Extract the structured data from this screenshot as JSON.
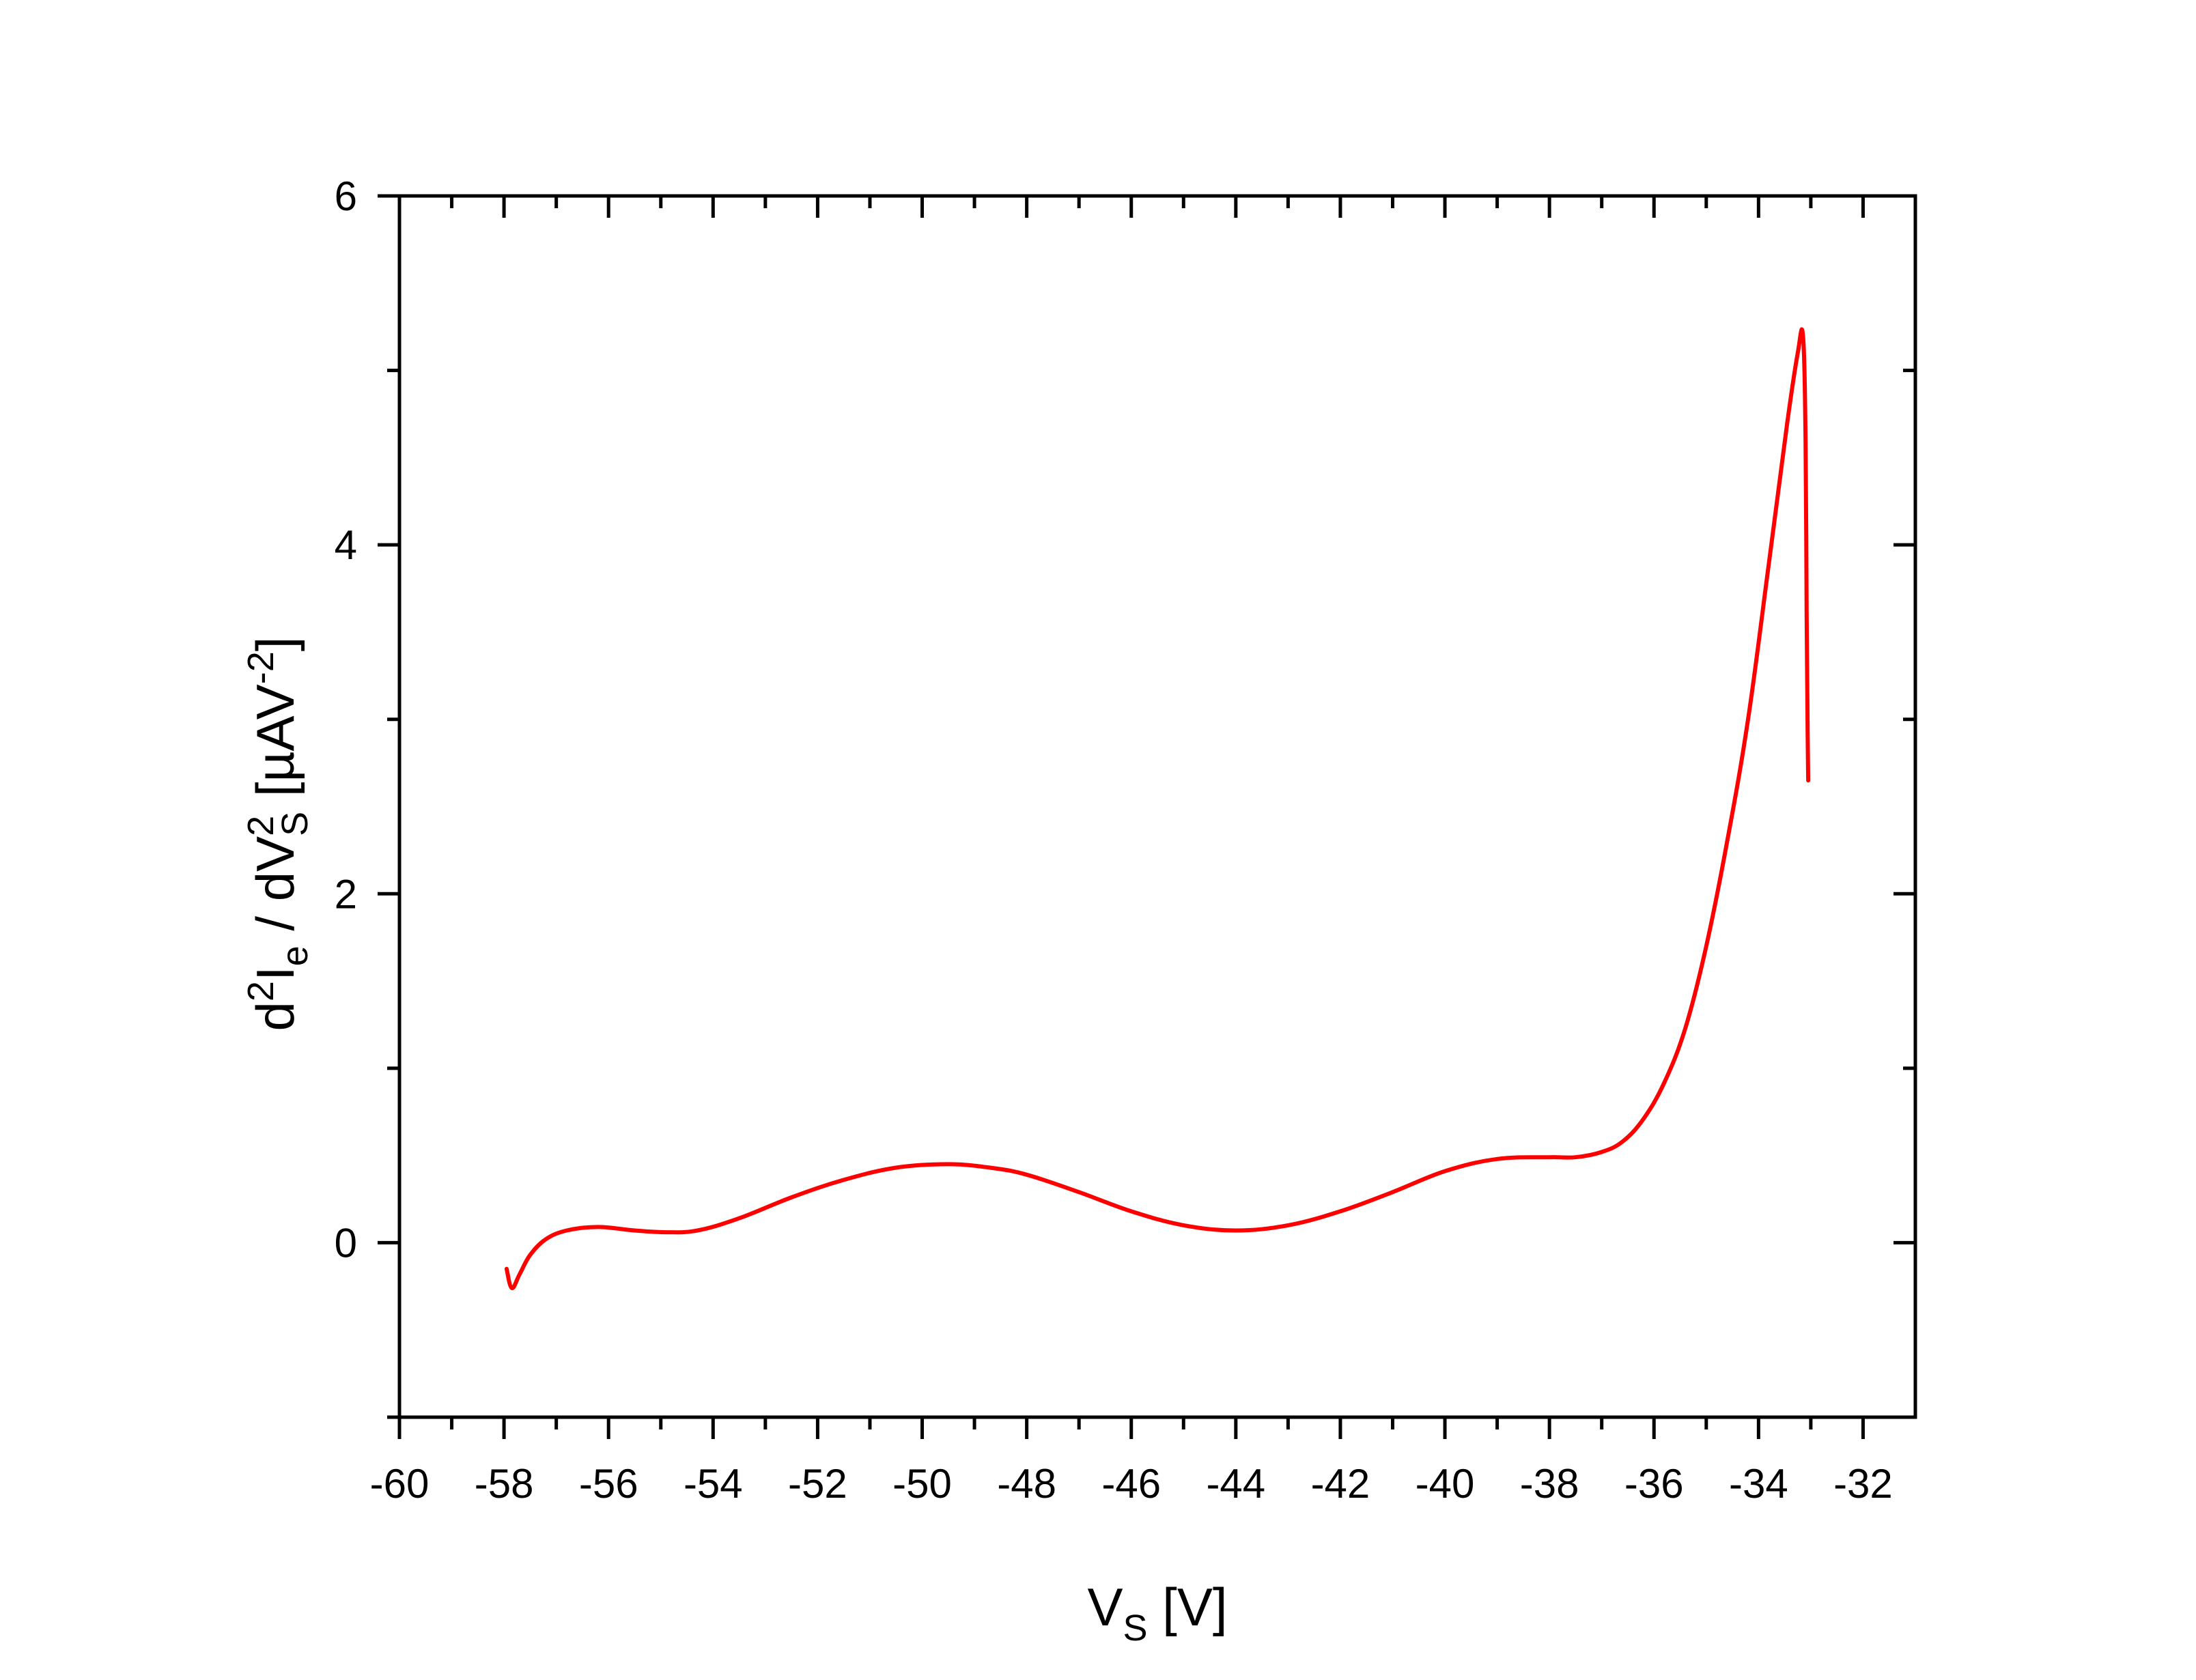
{
  "chart_data": {
    "type": "line",
    "title": "",
    "xlabel": {
      "main": "V",
      "sub": "S",
      "unit": " [V]"
    },
    "ylabel": {
      "d": "d",
      "sup2a": "2",
      "I": "I",
      "sub_e": "e",
      "mid": " / dV",
      "sup2b": "2",
      "sub_S": "S",
      "unit_pre": " [µAV",
      "unit_exp": "-2",
      "unit_post": "]"
    },
    "xlim": [
      -60,
      -31
    ],
    "ylim": [
      -1,
      6
    ],
    "x_ticks": [
      -60,
      -58,
      -56,
      -54,
      -52,
      -50,
      -48,
      -46,
      -44,
      -42,
      -40,
      -38,
      -36,
      -34,
      -32
    ],
    "x_tick_labels": [
      "-60",
      "-58",
      "-56",
      "-54",
      "-52",
      "-50",
      "-48",
      "-46",
      "-44",
      "-42",
      "-40",
      "-38",
      "-36",
      "-34",
      "-32"
    ],
    "y_ticks": [
      0,
      2,
      4,
      6
    ],
    "y_tick_labels": [
      "0",
      "2",
      "4",
      "6"
    ],
    "y_minor_ticks": [
      -1,
      1,
      3,
      5
    ],
    "grid": false,
    "series": [
      {
        "name": "d2Ie/dVS2",
        "color": "#ff0000",
        "x": [
          -57.95,
          -57.85,
          -57.7,
          -57.5,
          -57.2,
          -56.8,
          -56.2,
          -55.5,
          -54.9,
          -54.3,
          -53.5,
          -52.5,
          -51.5,
          -50.5,
          -49.5,
          -48.7,
          -48.0,
          -47.0,
          -46.0,
          -45.0,
          -44.0,
          -43.0,
          -42.0,
          -41.0,
          -40.0,
          -39.0,
          -38.0,
          -37.5,
          -37.0,
          -36.6,
          -36.2,
          -35.8,
          -35.4,
          -35.0,
          -34.6,
          -34.2,
          -33.8,
          -33.45,
          -33.25,
          -33.15,
          -33.1,
          -33.08,
          -33.06,
          -33.05
        ],
        "y": [
          -0.15,
          -0.26,
          -0.18,
          -0.07,
          0.02,
          0.07,
          0.09,
          0.07,
          0.06,
          0.07,
          0.14,
          0.26,
          0.36,
          0.43,
          0.45,
          0.43,
          0.39,
          0.29,
          0.18,
          0.1,
          0.07,
          0.1,
          0.18,
          0.29,
          0.41,
          0.48,
          0.49,
          0.49,
          0.52,
          0.58,
          0.71,
          0.92,
          1.23,
          1.7,
          2.3,
          3.0,
          3.9,
          4.7,
          5.1,
          5.2,
          4.6,
          3.6,
          2.9,
          2.65
        ]
      }
    ]
  }
}
